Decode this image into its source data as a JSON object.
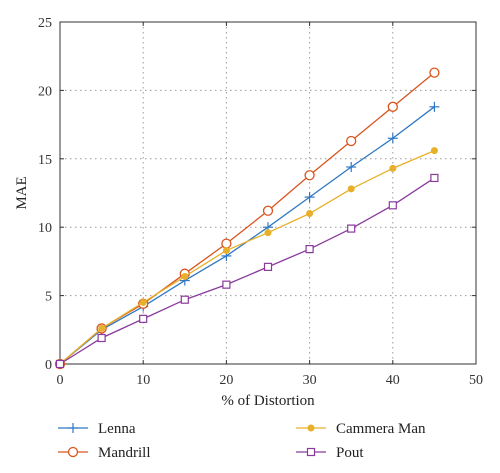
{
  "chart_data": {
    "type": "line",
    "title": "",
    "xlabel": "% of Distortion",
    "ylabel": "MAE",
    "xlim": [
      0,
      50
    ],
    "ylim": [
      0,
      25
    ],
    "xticks": [
      0,
      10,
      20,
      30,
      40,
      50
    ],
    "yticks": [
      0,
      5,
      10,
      15,
      20,
      25
    ],
    "grid": true,
    "legend_position": "bottom",
    "x": [
      0,
      5,
      10,
      15,
      20,
      25,
      30,
      35,
      40,
      45
    ],
    "series": [
      {
        "name": "Lenna",
        "marker": "plus",
        "color": "#2f78c4",
        "values": [
          0,
          2.5,
          4.2,
          6.1,
          7.9,
          10.0,
          12.2,
          14.4,
          16.5,
          18.8
        ]
      },
      {
        "name": "Mandrill",
        "marker": "circle-open",
        "color": "#d9541e",
        "values": [
          0,
          2.6,
          4.4,
          6.6,
          8.8,
          11.2,
          13.8,
          16.3,
          18.8,
          21.3
        ]
      },
      {
        "name": "Cammera Man",
        "marker": "dot",
        "color": "#e8b02a",
        "values": [
          0,
          2.6,
          4.5,
          6.4,
          8.3,
          9.6,
          11.0,
          12.8,
          14.3,
          15.6
        ]
      },
      {
        "name": "Pout",
        "marker": "square-open",
        "color": "#8a3a9c",
        "values": [
          0,
          1.9,
          3.3,
          4.7,
          5.8,
          7.1,
          8.4,
          9.9,
          11.6,
          13.6
        ]
      }
    ]
  }
}
